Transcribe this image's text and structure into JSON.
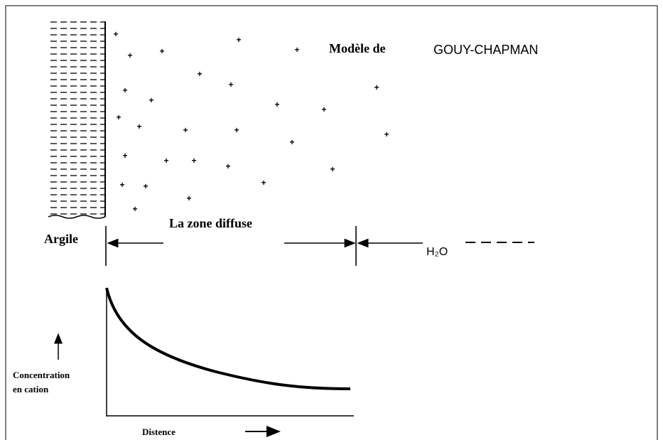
{
  "title": {
    "prefix": "Modèle de",
    "name": "GOUY-CHAPMAN"
  },
  "labels": {
    "clay": "Argile",
    "zone": "La zone diffuse",
    "water": "H₂O",
    "y_axis": [
      "Concentration",
      "en cation"
    ],
    "x_axis": "Distence"
  }
}
